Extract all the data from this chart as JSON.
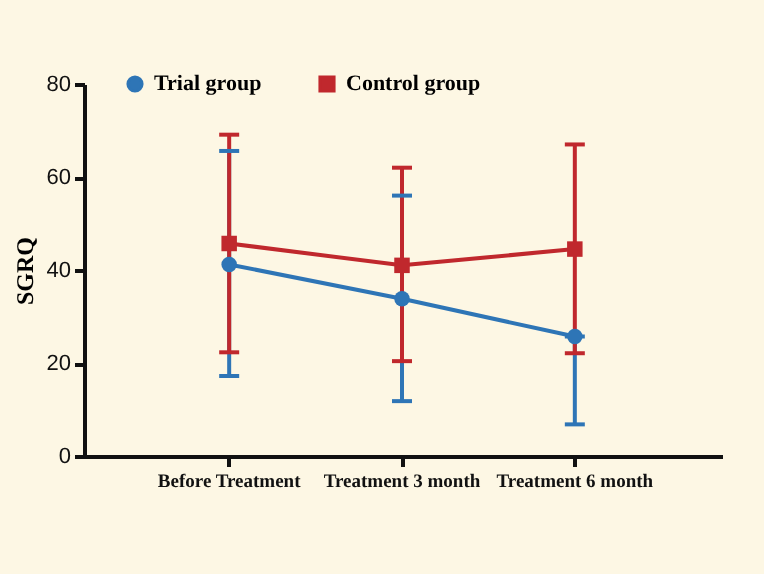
{
  "chart_data": {
    "type": "line",
    "ylabel": "SGRQ",
    "categories": [
      "Before Treatment",
      "Treatment  3 month",
      "Treatment  6 month"
    ],
    "series": [
      {
        "name": "Trial group",
        "color": "#2e75b6",
        "marker": "circle",
        "values": [
          41.2,
          33.8,
          25.7
        ],
        "errors": [
          [
            17.2,
            65.6
          ],
          [
            11.8,
            56
          ],
          [
            6.8,
            25.7
          ]
        ]
      },
      {
        "name": "Control group",
        "color": "#c0282d",
        "marker": "square",
        "values": [
          45.7,
          41,
          44.5
        ],
        "errors": [
          [
            22.3,
            69.1
          ],
          [
            20.4,
            62
          ],
          [
            22.1,
            67
          ]
        ]
      }
    ],
    "ylim": [
      0,
      80
    ],
    "yticks": [
      0,
      20,
      40,
      60,
      80
    ],
    "grid": false,
    "legend": "top"
  }
}
